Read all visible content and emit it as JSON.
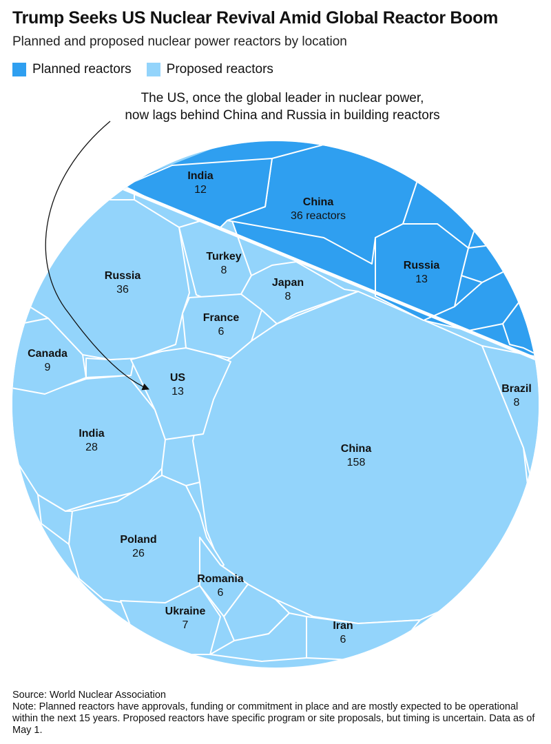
{
  "header": {
    "title": "Trump Seeks US Nuclear Revival Amid Global Reactor Boom",
    "subtitle": "Planned and proposed nuclear power reactors by location"
  },
  "legend": {
    "planned_label": "Planned reactors",
    "proposed_label": "Proposed reactors",
    "planned_color": "#2f9ff0",
    "proposed_color": "#93d4fb"
  },
  "annotation": {
    "line1": "The US, once the global leader in nuclear power,",
    "line2": "now lags behind China and Russia in building reactors"
  },
  "chart_data": {
    "type": "voronoi-treemap",
    "title": "Trump Seeks US Nuclear Revival Amid Global Reactor Boom",
    "subtitle": "Planned and proposed nuclear power reactors by location",
    "series": [
      {
        "name": "Planned reactors",
        "color": "#2f9ff0",
        "values": [
          {
            "location": "China",
            "reactors": 36,
            "label": "36 reactors"
          },
          {
            "location": "Russia",
            "reactors": 13,
            "label": "13"
          },
          {
            "location": "India",
            "reactors": 12,
            "label": "12"
          }
        ]
      },
      {
        "name": "Proposed reactors",
        "color": "#93d4fb",
        "values": [
          {
            "location": "China",
            "reactors": 158,
            "label": "158"
          },
          {
            "location": "Russia",
            "reactors": 36,
            "label": "36"
          },
          {
            "location": "India",
            "reactors": 28,
            "label": "28"
          },
          {
            "location": "Poland",
            "reactors": 26,
            "label": "26"
          },
          {
            "location": "US",
            "reactors": 13,
            "label": "13"
          },
          {
            "location": "Canada",
            "reactors": 9,
            "label": "9"
          },
          {
            "location": "Turkey",
            "reactors": 8,
            "label": "8"
          },
          {
            "location": "Japan",
            "reactors": 8,
            "label": "8"
          },
          {
            "location": "Brazil",
            "reactors": 8,
            "label": "8"
          },
          {
            "location": "Ukraine",
            "reactors": 7,
            "label": "7"
          },
          {
            "location": "France",
            "reactors": 6,
            "label": "6"
          },
          {
            "location": "Romania",
            "reactors": 6,
            "label": "6"
          },
          {
            "location": "Iran",
            "reactors": 6,
            "label": "6"
          }
        ]
      }
    ]
  },
  "footer": {
    "source": "Source: World Nuclear Association",
    "note": "Note: Planned reactors have approvals, funding or commitment in place and are mostly expected to be operational within the next 15 years. Proposed reactors have specific program or site proposals, but timing is uncertain. Data as of May 1."
  }
}
